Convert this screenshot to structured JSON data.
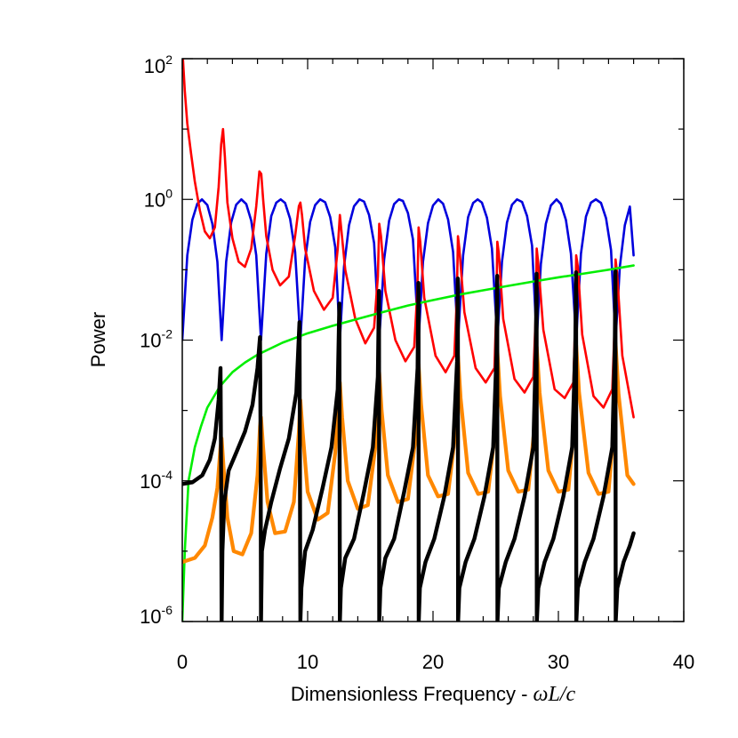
{
  "chart_data": {
    "type": "line",
    "title": "",
    "xlabel_text": "Dimensionless Frequency - ",
    "xlabel_math": "ωL/c",
    "ylabel": "Power",
    "xlim": [
      0,
      40
    ],
    "ylim": [
      1e-06,
      100
    ],
    "yscale": "log",
    "x_ticks": [
      0,
      10,
      20,
      30,
      40
    ],
    "y_ticks": [
      {
        "value": 100,
        "base": "10",
        "exp": "2"
      },
      {
        "value": 1,
        "base": "10",
        "exp": "0"
      },
      {
        "value": 0.01,
        "base": "10",
        "exp": "-2"
      },
      {
        "value": 0.0001,
        "base": "10",
        "exp": "-4"
      },
      {
        "value": 1e-06,
        "base": "10",
        "exp": "-6"
      }
    ],
    "grid": false,
    "legend": "none",
    "series": [
      {
        "color": "#0000dd",
        "x": [
          0,
          0.4,
          0.8,
          1.2,
          1.57,
          2.0,
          2.4,
          2.8,
          3.14,
          3.5,
          3.9,
          4.3,
          4.71,
          5.1,
          5.5,
          5.9,
          6.28,
          6.7,
          7.1,
          7.5,
          7.85,
          8.2,
          8.6,
          9.0,
          9.42,
          9.8,
          10.2,
          10.6,
          11.0,
          11.4,
          11.8,
          12.2,
          12.57,
          12.9,
          13.3,
          13.7,
          14.14,
          14.5,
          14.9,
          15.3,
          15.71,
          16.1,
          16.5,
          16.9,
          17.28,
          17.6,
          18.0,
          18.4,
          18.85,
          19.2,
          19.6,
          20.0,
          20.42,
          20.8,
          21.2,
          21.6,
          21.99,
          22.4,
          22.8,
          23.2,
          23.56,
          23.9,
          24.3,
          24.7,
          25.13,
          25.5,
          25.9,
          26.3,
          26.7,
          27.1,
          27.5,
          27.9,
          28.27,
          28.6,
          29.0,
          29.4,
          29.85,
          30.2,
          30.6,
          31.0,
          31.42,
          31.8,
          32.2,
          32.6,
          32.99,
          33.4,
          33.8,
          34.2,
          34.56,
          34.9,
          35.3,
          35.7,
          36.0
        ],
        "y": [
          0.01,
          0.16,
          0.51,
          0.87,
          1.0,
          0.83,
          0.45,
          0.13,
          0.01,
          0.13,
          0.47,
          0.84,
          1.0,
          0.86,
          0.5,
          0.16,
          0.01,
          0.17,
          0.58,
          0.9,
          1.0,
          0.89,
          0.53,
          0.18,
          0.01,
          0.14,
          0.48,
          0.83,
          1.0,
          0.91,
          0.56,
          0.21,
          0.01,
          0.11,
          0.43,
          0.8,
          1.0,
          0.93,
          0.6,
          0.24,
          0.01,
          0.14,
          0.5,
          0.86,
          1.0,
          0.95,
          0.64,
          0.27,
          0.01,
          0.13,
          0.46,
          0.82,
          1.0,
          0.87,
          0.52,
          0.18,
          0.01,
          0.16,
          0.56,
          0.89,
          1.0,
          0.9,
          0.55,
          0.2,
          0.01,
          0.13,
          0.47,
          0.84,
          1.0,
          0.92,
          0.58,
          0.22,
          0.01,
          0.12,
          0.45,
          0.82,
          1.0,
          0.86,
          0.51,
          0.17,
          0.01,
          0.17,
          0.57,
          0.9,
          1.0,
          0.89,
          0.54,
          0.19,
          0.01,
          0.11,
          0.43,
          0.79,
          0.16
        ]
      },
      {
        "color": "#ff0000",
        "x": [
          0.05,
          0.2,
          0.4,
          0.7,
          1.0,
          1.4,
          1.8,
          2.2,
          2.6,
          2.9,
          3.1,
          3.25,
          3.4,
          3.6,
          4.0,
          4.5,
          5.0,
          5.5,
          5.9,
          6.15,
          6.3,
          6.45,
          6.7,
          7.2,
          7.8,
          8.5,
          9.0,
          9.3,
          9.42,
          9.55,
          9.8,
          10.5,
          11.3,
          12.0,
          12.4,
          12.57,
          12.7,
          13.0,
          13.8,
          14.6,
          15.3,
          15.6,
          15.71,
          15.85,
          16.2,
          17.0,
          17.8,
          18.5,
          18.75,
          18.85,
          18.98,
          19.3,
          20.2,
          21.0,
          21.7,
          21.9,
          21.99,
          22.1,
          22.5,
          23.4,
          24.2,
          24.9,
          25.05,
          25.13,
          25.25,
          25.6,
          26.5,
          27.3,
          28.0,
          28.2,
          28.27,
          28.38,
          28.8,
          29.7,
          30.5,
          31.2,
          31.34,
          31.42,
          31.55,
          31.9,
          32.8,
          33.6,
          34.3,
          34.48,
          34.56,
          34.68,
          35.1,
          36.0
        ],
        "y": [
          100,
          35,
          12,
          4.5,
          1.8,
          0.7,
          0.35,
          0.28,
          0.4,
          1.5,
          6,
          10,
          4,
          0.9,
          0.28,
          0.13,
          0.11,
          0.2,
          0.8,
          2.5,
          2.3,
          1.0,
          0.3,
          0.1,
          0.06,
          0.08,
          0.3,
          0.8,
          0.9,
          0.6,
          0.2,
          0.05,
          0.027,
          0.04,
          0.2,
          0.6,
          0.35,
          0.1,
          0.02,
          0.009,
          0.015,
          0.08,
          0.45,
          0.3,
          0.05,
          0.01,
          0.005,
          0.008,
          0.05,
          0.4,
          0.25,
          0.04,
          0.006,
          0.0035,
          0.006,
          0.04,
          0.3,
          0.2,
          0.025,
          0.004,
          0.0025,
          0.004,
          0.03,
          0.25,
          0.17,
          0.02,
          0.0028,
          0.0018,
          0.003,
          0.025,
          0.2,
          0.13,
          0.014,
          0.002,
          0.0015,
          0.0025,
          0.02,
          0.16,
          0.11,
          0.012,
          0.0016,
          0.0011,
          0.002,
          0.015,
          0.14,
          0.09,
          0.006,
          0.0008
        ]
      },
      {
        "color": "#00ee00",
        "x": [
          0.0,
          0.2,
          0.5,
          1.0,
          1.5,
          2.0,
          3.0,
          4.0,
          5.0,
          6.0,
          8.0,
          10.0,
          12.0,
          14.0,
          16.0,
          18.0,
          20.0,
          22.0,
          24.0,
          26.0,
          28.0,
          30.0,
          32.0,
          34.0,
          36.0
        ],
        "y": [
          1e-06,
          1e-05,
          0.0001,
          0.0003,
          0.0006,
          0.0011,
          0.0022,
          0.0035,
          0.0048,
          0.0062,
          0.0092,
          0.0125,
          0.016,
          0.02,
          0.025,
          0.031,
          0.037,
          0.044,
          0.051,
          0.059,
          0.068,
          0.078,
          0.088,
          0.1,
          0.115
        ]
      },
      {
        "color": "#ff8800",
        "x": [
          0.0,
          1.0,
          1.8,
          2.4,
          2.8,
          3.05,
          3.14,
          3.3,
          3.6,
          4.1,
          4.8,
          5.5,
          6.0,
          6.2,
          6.28,
          6.45,
          6.8,
          7.4,
          8.2,
          8.9,
          9.3,
          9.42,
          9.6,
          10.0,
          10.8,
          11.6,
          12.2,
          12.5,
          12.57,
          12.75,
          13.2,
          14.0,
          14.8,
          15.4,
          15.65,
          15.71,
          15.9,
          16.4,
          17.2,
          18.0,
          18.6,
          18.8,
          18.85,
          19.05,
          19.6,
          20.4,
          21.2,
          21.8,
          21.95,
          21.99,
          22.2,
          22.8,
          23.6,
          24.4,
          24.95,
          25.1,
          25.13,
          25.35,
          26.0,
          26.8,
          27.6,
          28.1,
          28.25,
          28.27,
          28.5,
          29.2,
          30.0,
          30.8,
          31.25,
          31.4,
          31.42,
          31.65,
          32.4,
          33.2,
          34.0,
          34.4,
          34.54,
          34.56,
          34.8,
          35.5,
          36.0
        ],
        "y": [
          7e-06,
          8e-06,
          1.2e-05,
          3e-05,
          8e-05,
          0.0003,
          0.0004,
          0.00015,
          3e-05,
          1e-05,
          9e-06,
          1.8e-05,
          0.00012,
          0.0006,
          0.0008,
          0.0003,
          5e-05,
          1.8e-05,
          1.9e-05,
          5e-05,
          0.0005,
          0.0014,
          0.0005,
          7e-05,
          2.8e-05,
          3.5e-05,
          0.00025,
          0.0018,
          0.0025,
          0.0008,
          0.0001,
          4e-05,
          4.5e-05,
          0.0003,
          0.003,
          0.0035,
          0.001,
          0.00012,
          5e-05,
          5.5e-05,
          0.0004,
          0.004,
          0.0045,
          0.0012,
          0.00012,
          6e-05,
          6.5e-05,
          0.0005,
          0.005,
          0.006,
          0.0015,
          0.00013,
          6.5e-05,
          7e-05,
          0.0005,
          0.006,
          0.007,
          0.0016,
          0.00014,
          7e-05,
          7.5e-05,
          0.0006,
          0.0068,
          0.008,
          0.0018,
          0.00014,
          7e-05,
          7.5e-05,
          0.0006,
          0.007,
          0.0085,
          0.0018,
          0.00013,
          6.5e-05,
          7e-05,
          0.0005,
          0.0075,
          0.009,
          0.0017,
          0.00012,
          9e-05
        ]
      },
      {
        "color": "#000000",
        "x": [
          0.0,
          0.8,
          1.6,
          2.2,
          2.6,
          2.9,
          3.05,
          3.1,
          3.14,
          3.2,
          3.35,
          3.7,
          4.3,
          5.0,
          5.6,
          6.0,
          6.2,
          6.25,
          6.28,
          6.35,
          6.6,
          7.1,
          7.8,
          8.5,
          9.1,
          9.35,
          9.42,
          9.5,
          9.8,
          10.4,
          11.2,
          11.9,
          12.4,
          12.53,
          12.57,
          12.65,
          13.0,
          13.7,
          14.5,
          15.2,
          15.6,
          15.69,
          15.71,
          15.8,
          16.2,
          16.9,
          17.7,
          18.4,
          18.77,
          18.84,
          18.86,
          18.95,
          19.4,
          20.1,
          20.9,
          21.6,
          21.92,
          21.98,
          22.0,
          22.1,
          22.6,
          23.3,
          24.1,
          24.8,
          25.06,
          25.12,
          25.14,
          25.25,
          25.8,
          26.5,
          27.3,
          28.0,
          28.2,
          28.26,
          28.28,
          28.4,
          28.9,
          29.6,
          30.4,
          31.1,
          31.35,
          31.41,
          31.43,
          31.55,
          32.1,
          32.8,
          33.6,
          34.3,
          34.5,
          34.55,
          34.57,
          34.7,
          35.2,
          35.7,
          36.0
        ],
        "y": [
          9e-05,
          9.5e-05,
          0.00012,
          0.0002,
          0.0004,
          0.0014,
          0.004,
          0.0001,
          1e-06,
          1e-05,
          5e-05,
          0.00014,
          0.00025,
          0.0005,
          0.0012,
          0.004,
          0.011,
          0.0003,
          1e-06,
          1e-05,
          2e-05,
          5e-05,
          0.00015,
          0.0004,
          0.0018,
          0.018,
          1e-06,
          3e-06,
          1e-05,
          2e-05,
          8e-05,
          0.0003,
          0.002,
          0.033,
          1e-06,
          3e-06,
          8e-06,
          1.5e-05,
          7e-05,
          0.0003,
          0.003,
          0.05,
          1e-06,
          3e-06,
          8e-06,
          1.5e-05,
          7e-05,
          0.0003,
          0.004,
          0.065,
          1e-06,
          3e-06,
          7e-06,
          1.5e-05,
          6e-05,
          0.0003,
          0.005,
          0.075,
          1e-06,
          3e-06,
          7e-06,
          1.5e-05,
          6e-05,
          0.0003,
          0.006,
          0.082,
          1e-06,
          3e-06,
          7e-06,
          1.5e-05,
          6e-05,
          0.0003,
          0.007,
          0.088,
          1e-06,
          3e-06,
          7e-06,
          1.5e-05,
          6e-05,
          0.0003,
          0.008,
          0.092,
          1e-06,
          3e-06,
          7e-06,
          1.5e-05,
          6e-05,
          0.0003,
          0.008,
          0.095,
          1e-06,
          3e-06,
          7e-06,
          1.2e-05,
          1.8e-05
        ]
      }
    ]
  }
}
